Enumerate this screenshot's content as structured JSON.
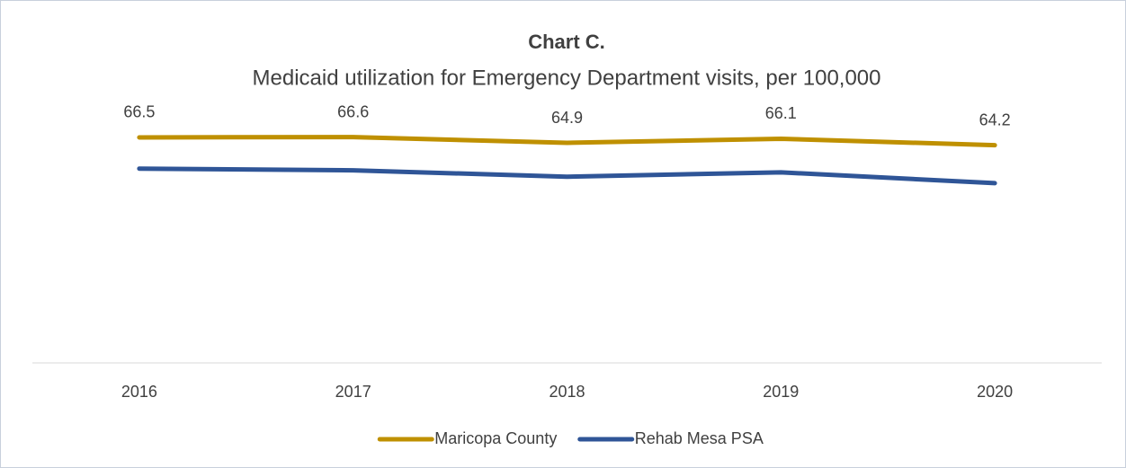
{
  "chart_data": {
    "type": "line",
    "title": "Chart C.",
    "subtitle": "Medicaid utilization for Emergency Department visits, per 100,000",
    "categories": [
      "2016",
      "2017",
      "2018",
      "2019",
      "2020"
    ],
    "series": [
      {
        "name": "Maricopa County",
        "color": "#bf9000",
        "values": [
          66.5,
          66.6,
          64.9,
          66.1,
          64.2
        ],
        "data_labels": true
      },
      {
        "name": "Rehab Mesa PSA",
        "color": "#2f5597",
        "values": [
          57.3,
          56.8,
          54.9,
          56.2,
          53.0
        ],
        "data_labels": false
      }
    ],
    "ylim": [
      0,
      80
    ],
    "legend": "bottom"
  }
}
